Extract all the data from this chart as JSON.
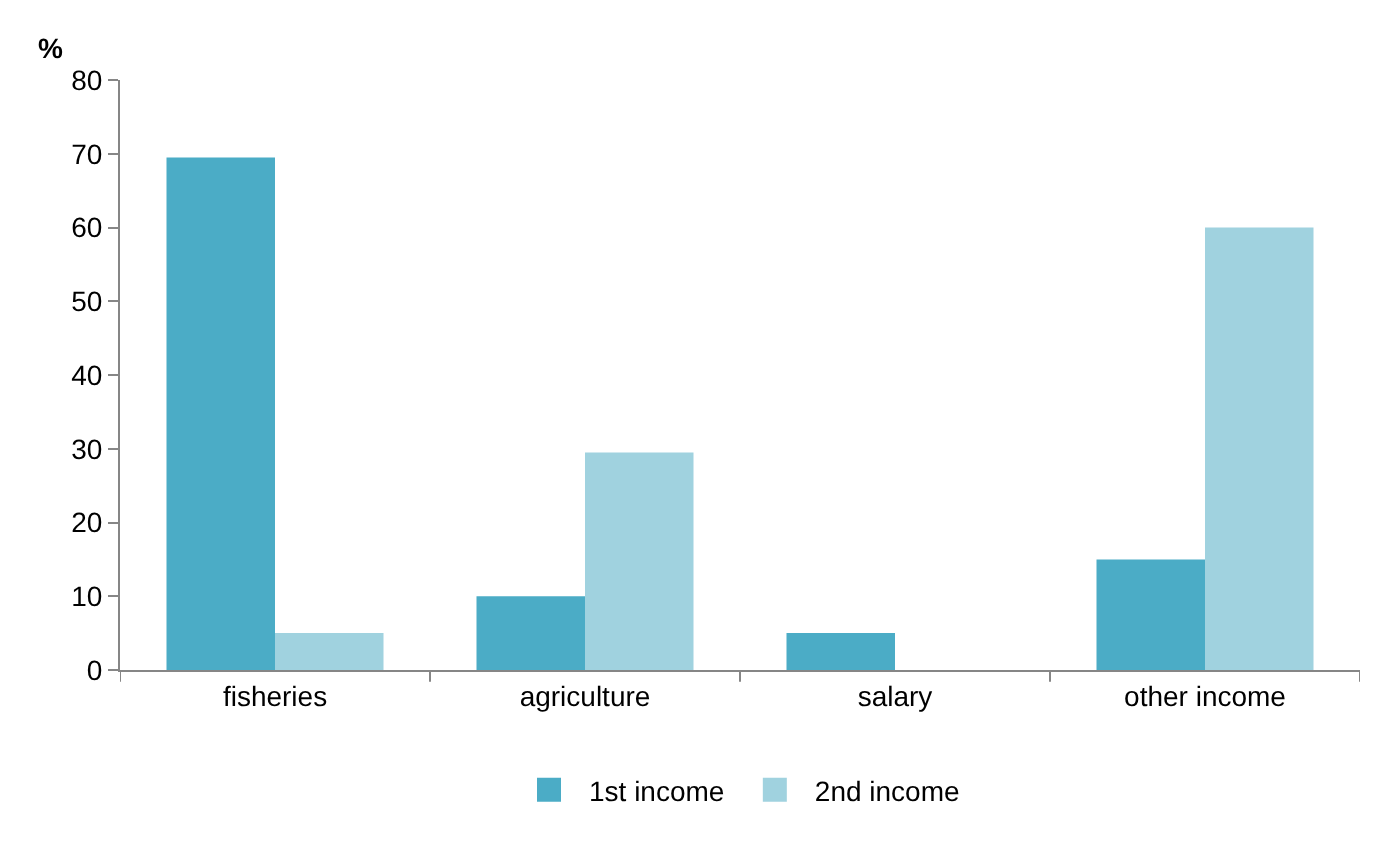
{
  "chart_data": {
    "type": "bar",
    "ylabel": "%",
    "categories": [
      "fisheries",
      "agriculture",
      "salary",
      "other income"
    ],
    "series": [
      {
        "name": "1st income",
        "color": "#4bacc6",
        "values": [
          69.5,
          10,
          5,
          15
        ]
      },
      {
        "name": "2nd income",
        "color": "#a0d2df",
        "values": [
          5,
          29.5,
          0,
          60
        ]
      }
    ],
    "ylim": [
      0,
      80
    ],
    "yticks": [
      0,
      10,
      20,
      30,
      40,
      50,
      60,
      70,
      80
    ],
    "legend": "bottom"
  }
}
